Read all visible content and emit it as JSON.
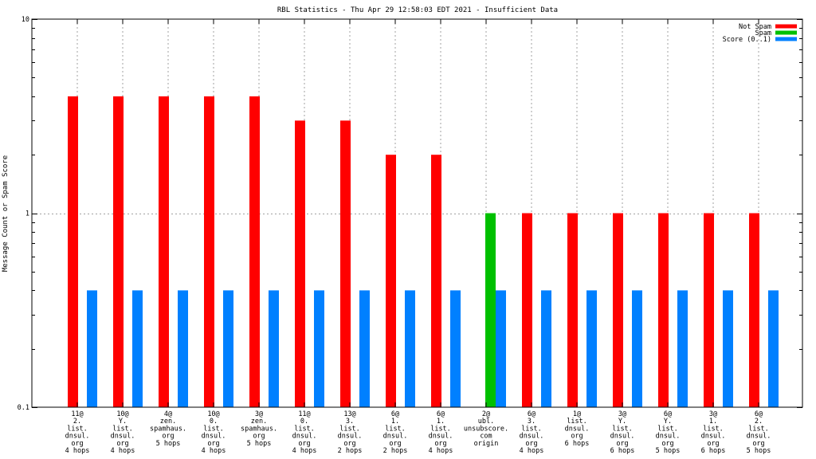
{
  "chart_data": {
    "type": "bar",
    "title": "RBL Statistics - Thu Apr 29 12:58:03 EDT 2021 - Insufficient Data",
    "xlabel": "",
    "ylabel": "Message Count or Spam Score",
    "yscale": "log",
    "ylim": [
      0.1,
      10
    ],
    "y_ticks": [
      "10",
      "1",
      "0.1"
    ],
    "grid": true,
    "legend_position": "top-right",
    "categories": [
      "11@\n2.\nlist.\ndnsul.\norg\n4 hops",
      "10@\nY.\nlist.\ndnsul.\norg\n4 hops",
      "4@\nzen.\nspamhaus.\norg\n5 hops",
      "10@\n0.\nlist.\ndnsul.\norg\n4 hops",
      "3@\nzen.\nspamhaus.\norg\n5 hops",
      "11@\n0.\nlist.\ndnsul.\norg\n4 hops",
      "13@\n3.\nlist.\ndnsul.\norg\n2 hops",
      "6@\n1.\nlist.\ndnsul.\norg\n2 hops",
      "6@\n1.\nlist.\ndnsul.\norg\n4 hops",
      "2@\nubl.\nunsubscore.\ncom\norigin",
      "6@\n3.\nlist.\ndnsul.\norg\n4 hops",
      "1@\nlist.\ndnsul.\norg\n6 hops",
      "3@\nY.\nlist.\ndnsul.\norg\n6 hops",
      "6@\nY.\nlist.\ndnsul.\norg\n5 hops",
      "3@\n1.\nlist.\ndnsul.\norg\n6 hops",
      "6@\n2.\nlist.\ndnsul.\norg\n5 hops"
    ],
    "series": [
      {
        "name": "Not Spam",
        "color": "#ff0000",
        "values": [
          4,
          4,
          4,
          4,
          4,
          3,
          3,
          2,
          2,
          null,
          1,
          1,
          1,
          1,
          1,
          1
        ]
      },
      {
        "name": "Spam",
        "color": "#00c000",
        "values": [
          null,
          null,
          null,
          null,
          null,
          null,
          null,
          null,
          null,
          1,
          null,
          null,
          null,
          null,
          null,
          null
        ]
      },
      {
        "name": "Score (0..1)",
        "color": "#0080ff",
        "values": [
          0.4,
          0.4,
          0.4,
          0.4,
          0.4,
          0.4,
          0.4,
          0.4,
          0.4,
          0.4,
          0.4,
          0.4,
          0.4,
          0.4,
          0.4,
          0.4
        ]
      }
    ]
  }
}
